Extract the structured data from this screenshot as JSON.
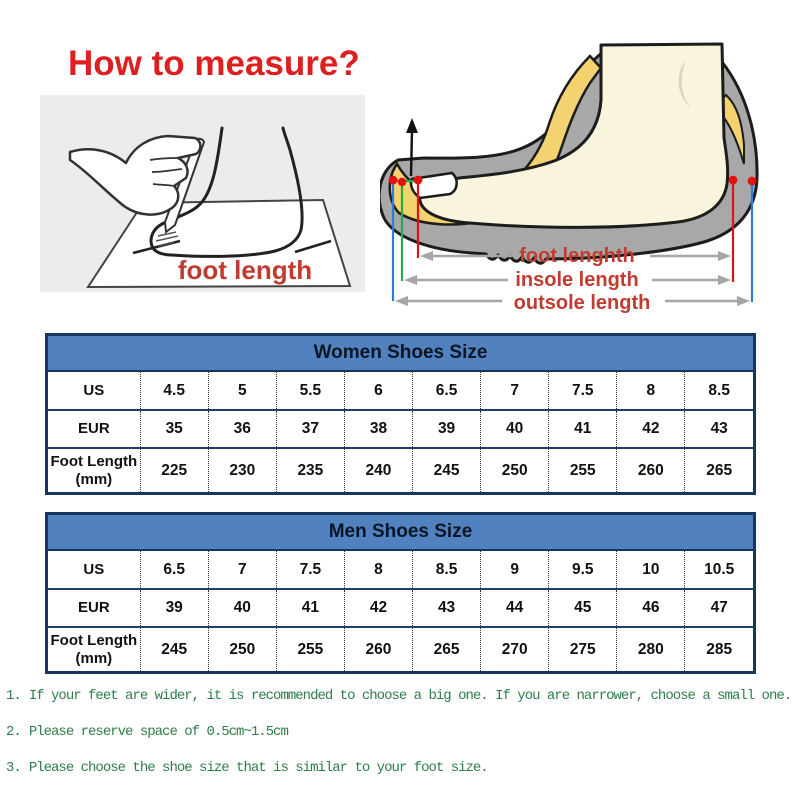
{
  "title": "How to measure?",
  "measure_panel": {
    "caption": "foot length"
  },
  "shoe_diagram": {
    "foot_label": "foot lenghth",
    "insole_label": "insole length",
    "outsole_label": "outsole length"
  },
  "tables": [
    {
      "title": "Women Shoes Size",
      "rows": [
        {
          "label": "US",
          "sub": "",
          "values": [
            "4.5",
            "5",
            "5.5",
            "6",
            "6.5",
            "7",
            "7.5",
            "8",
            "8.5"
          ]
        },
        {
          "label": "EUR",
          "sub": "",
          "values": [
            "35",
            "36",
            "37",
            "38",
            "39",
            "40",
            "41",
            "42",
            "43"
          ]
        },
        {
          "label": "Foot Length",
          "sub": "(mm)",
          "values": [
            "225",
            "230",
            "235",
            "240",
            "245",
            "250",
            "255",
            "260",
            "265"
          ]
        }
      ]
    },
    {
      "title": "Men Shoes Size",
      "rows": [
        {
          "label": "US",
          "sub": "",
          "values": [
            "6.5",
            "7",
            "7.5",
            "8",
            "8.5",
            "9",
            "9.5",
            "10",
            "10.5"
          ]
        },
        {
          "label": "EUR",
          "sub": "",
          "values": [
            "39",
            "40",
            "41",
            "42",
            "43",
            "44",
            "45",
            "46",
            "47"
          ]
        },
        {
          "label": "Foot Length",
          "sub": "(mm)",
          "values": [
            "245",
            "250",
            "255",
            "260",
            "265",
            "270",
            "275",
            "280",
            "285"
          ]
        }
      ]
    }
  ],
  "notes": [
    {
      "num": "1.",
      "text": "If your feet are wider, it is recommended to choose a big one. If you are narrower, choose a small one."
    },
    {
      "num": "2.",
      "text": "Please reserve space of 0.5cm~1.5cm"
    },
    {
      "num": "3.",
      "text": "Please choose the shoe size that is similar to your foot size."
    }
  ],
  "colors": {
    "title_red": "#dd1f1f",
    "label_red": "#c23b30",
    "header_blue": "#5181be",
    "table_border_navy": "#17365d",
    "note_green": "#2e7d49",
    "outsole_gray": "#a8a8a8",
    "insole_yellow": "#f2d36f",
    "skin_cream": "#f8f4dd",
    "panel_gray": "#ececec"
  }
}
